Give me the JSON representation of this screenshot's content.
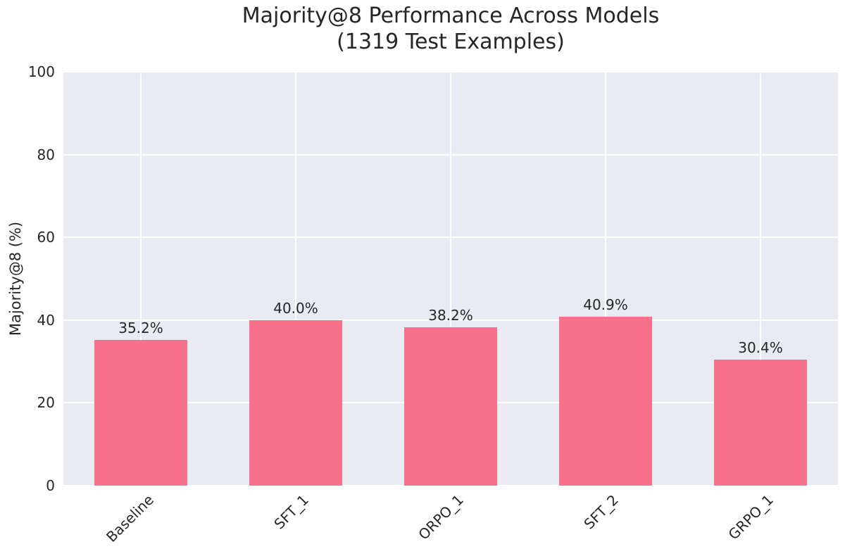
{
  "figure": {
    "background_color": "#ffffff",
    "plot_background_color": "#eaeaf2",
    "grid_color": "#ffffff",
    "text_color": "#262626",
    "bar_color": "#f67189"
  },
  "chart_data": {
    "type": "bar",
    "title": "Majority@8 Performance Across Models\n(1319 Test Examples)",
    "categories": [
      "Baseline",
      "SFT_1",
      "ORPO_1",
      "SFT_2",
      "GRPO_1"
    ],
    "values": [
      35.2,
      40.0,
      38.2,
      40.9,
      30.4
    ],
    "value_labels": [
      "35.2%",
      "40.0%",
      "38.2%",
      "40.9%",
      "30.4%"
    ],
    "xlabel": "",
    "ylabel": "Majority@8 (%)",
    "ylim": [
      0,
      100
    ],
    "yticks": [
      0,
      20,
      40,
      60,
      80,
      100
    ],
    "ytick_labels": [
      "0",
      "20",
      "40",
      "60",
      "80",
      "100"
    ],
    "grid": true,
    "legend_position": "none",
    "bar_width_fraction": 0.6,
    "x_tick_rotation_deg": 45
  }
}
